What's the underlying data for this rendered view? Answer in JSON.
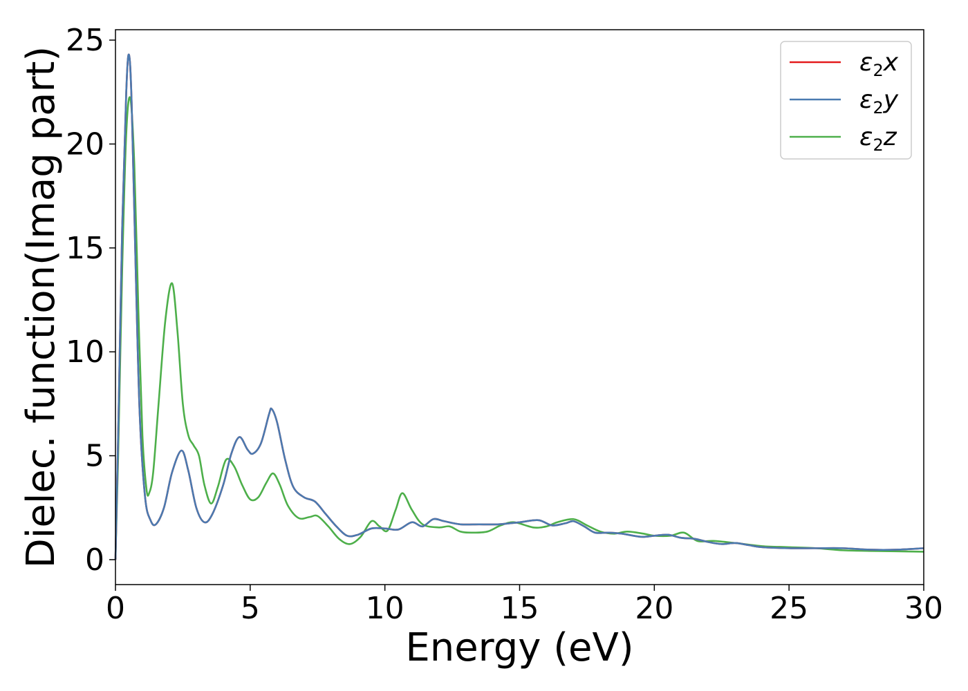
{
  "chart_data": {
    "type": "line",
    "xlabel": "Energy (eV)",
    "ylabel": "Dielec. function(Imag part)",
    "xlim": [
      0,
      30
    ],
    "ylim": [
      -1.2,
      25.5
    ],
    "x_ticks": [
      0,
      5,
      10,
      15,
      20,
      25,
      30
    ],
    "x_tick_labels": [
      "0",
      "5",
      "10",
      "15",
      "20",
      "25",
      "30"
    ],
    "y_ticks": [
      0,
      5,
      10,
      15,
      20,
      25
    ],
    "y_tick_labels": [
      "0",
      "5",
      "10",
      "15",
      "20",
      "25"
    ],
    "grid": false,
    "legend_position": "top-right",
    "series": [
      {
        "name": "ε2x",
        "legend_symbol": "ε",
        "legend_sub": "2",
        "legend_suffix": "x",
        "color": "#e41a1c",
        "points": [
          [
            0,
            0
          ],
          [
            0.1,
            6
          ],
          [
            0.25,
            16
          ],
          [
            0.4,
            22.5
          ],
          [
            0.5,
            24.3
          ],
          [
            0.6,
            22
          ],
          [
            0.75,
            14
          ],
          [
            0.9,
            7
          ],
          [
            1.1,
            3
          ],
          [
            1.3,
            1.9
          ],
          [
            1.5,
            1.7
          ],
          [
            1.8,
            2.5
          ],
          [
            2.1,
            4.2
          ],
          [
            2.45,
            5.25
          ],
          [
            2.7,
            4.3
          ],
          [
            3.0,
            2.5
          ],
          [
            3.3,
            1.8
          ],
          [
            3.6,
            2.2
          ],
          [
            4.0,
            3.6
          ],
          [
            4.3,
            5.1
          ],
          [
            4.6,
            5.9
          ],
          [
            4.9,
            5.3
          ],
          [
            5.1,
            5.1
          ],
          [
            5.4,
            5.6
          ],
          [
            5.7,
            7.0
          ],
          [
            5.8,
            7.25
          ],
          [
            6.0,
            6.6
          ],
          [
            6.3,
            4.8
          ],
          [
            6.6,
            3.5
          ],
          [
            7.0,
            3.0
          ],
          [
            7.4,
            2.8
          ],
          [
            7.8,
            2.2
          ],
          [
            8.2,
            1.6
          ],
          [
            8.6,
            1.15
          ],
          [
            9.0,
            1.2
          ],
          [
            9.5,
            1.5
          ],
          [
            10.0,
            1.5
          ],
          [
            10.5,
            1.45
          ],
          [
            11.0,
            1.8
          ],
          [
            11.4,
            1.6
          ],
          [
            11.8,
            1.95
          ],
          [
            12.2,
            1.85
          ],
          [
            12.8,
            1.7
          ],
          [
            13.5,
            1.7
          ],
          [
            14.2,
            1.7
          ],
          [
            15.0,
            1.8
          ],
          [
            15.7,
            1.9
          ],
          [
            16.2,
            1.65
          ],
          [
            16.7,
            1.75
          ],
          [
            17.0,
            1.85
          ],
          [
            17.4,
            1.6
          ],
          [
            17.8,
            1.3
          ],
          [
            18.3,
            1.3
          ],
          [
            18.8,
            1.25
          ],
          [
            19.5,
            1.1
          ],
          [
            20.0,
            1.15
          ],
          [
            20.5,
            1.2
          ],
          [
            21.0,
            1.05
          ],
          [
            21.5,
            1.0
          ],
          [
            22.0,
            0.85
          ],
          [
            22.5,
            0.75
          ],
          [
            23.0,
            0.8
          ],
          [
            23.5,
            0.7
          ],
          [
            24.0,
            0.6
          ],
          [
            25.0,
            0.55
          ],
          [
            26.0,
            0.55
          ],
          [
            27.0,
            0.55
          ],
          [
            28.0,
            0.48
          ],
          [
            29.0,
            0.48
          ],
          [
            30.0,
            0.55
          ]
        ]
      },
      {
        "name": "ε2y",
        "legend_symbol": "ε",
        "legend_sub": "2",
        "legend_suffix": "y",
        "color": "#4a7ab0",
        "points": [
          [
            0,
            0
          ],
          [
            0.1,
            6
          ],
          [
            0.25,
            16
          ],
          [
            0.4,
            22.5
          ],
          [
            0.5,
            24.3
          ],
          [
            0.6,
            22
          ],
          [
            0.75,
            14
          ],
          [
            0.9,
            7
          ],
          [
            1.1,
            3
          ],
          [
            1.3,
            1.9
          ],
          [
            1.5,
            1.7
          ],
          [
            1.8,
            2.5
          ],
          [
            2.1,
            4.2
          ],
          [
            2.45,
            5.25
          ],
          [
            2.7,
            4.3
          ],
          [
            3.0,
            2.5
          ],
          [
            3.3,
            1.8
          ],
          [
            3.6,
            2.2
          ],
          [
            4.0,
            3.6
          ],
          [
            4.3,
            5.1
          ],
          [
            4.6,
            5.9
          ],
          [
            4.9,
            5.3
          ],
          [
            5.1,
            5.1
          ],
          [
            5.4,
            5.6
          ],
          [
            5.7,
            7.0
          ],
          [
            5.8,
            7.25
          ],
          [
            6.0,
            6.6
          ],
          [
            6.3,
            4.8
          ],
          [
            6.6,
            3.5
          ],
          [
            7.0,
            3.0
          ],
          [
            7.4,
            2.8
          ],
          [
            7.8,
            2.2
          ],
          [
            8.2,
            1.6
          ],
          [
            8.6,
            1.15
          ],
          [
            9.0,
            1.2
          ],
          [
            9.5,
            1.5
          ],
          [
            10.0,
            1.5
          ],
          [
            10.5,
            1.45
          ],
          [
            11.0,
            1.8
          ],
          [
            11.4,
            1.6
          ],
          [
            11.8,
            1.95
          ],
          [
            12.2,
            1.85
          ],
          [
            12.8,
            1.7
          ],
          [
            13.5,
            1.7
          ],
          [
            14.2,
            1.7
          ],
          [
            15.0,
            1.8
          ],
          [
            15.7,
            1.9
          ],
          [
            16.2,
            1.65
          ],
          [
            16.7,
            1.75
          ],
          [
            17.0,
            1.85
          ],
          [
            17.4,
            1.6
          ],
          [
            17.8,
            1.3
          ],
          [
            18.3,
            1.3
          ],
          [
            18.8,
            1.25
          ],
          [
            19.5,
            1.1
          ],
          [
            20.0,
            1.15
          ],
          [
            20.5,
            1.2
          ],
          [
            21.0,
            1.05
          ],
          [
            21.5,
            1.0
          ],
          [
            22.0,
            0.85
          ],
          [
            22.5,
            0.75
          ],
          [
            23.0,
            0.8
          ],
          [
            23.5,
            0.7
          ],
          [
            24.0,
            0.6
          ],
          [
            25.0,
            0.55
          ],
          [
            26.0,
            0.55
          ],
          [
            27.0,
            0.55
          ],
          [
            28.0,
            0.48
          ],
          [
            29.0,
            0.48
          ],
          [
            30.0,
            0.55
          ]
        ]
      },
      {
        "name": "ε2z",
        "legend_symbol": "ε",
        "legend_sub": "2",
        "legend_suffix": "z",
        "color": "#4daf4a",
        "points": [
          [
            0,
            0
          ],
          [
            0.1,
            5
          ],
          [
            0.25,
            14
          ],
          [
            0.4,
            20.5
          ],
          [
            0.55,
            22.2
          ],
          [
            0.7,
            19
          ],
          [
            0.85,
            12
          ],
          [
            1.0,
            6
          ],
          [
            1.15,
            3.4
          ],
          [
            1.25,
            3.2
          ],
          [
            1.4,
            4.2
          ],
          [
            1.6,
            7.5
          ],
          [
            1.85,
            11.5
          ],
          [
            2.1,
            13.3
          ],
          [
            2.3,
            11
          ],
          [
            2.5,
            7.5
          ],
          [
            2.7,
            6
          ],
          [
            2.9,
            5.5
          ],
          [
            3.1,
            5.0
          ],
          [
            3.3,
            3.6
          ],
          [
            3.55,
            2.7
          ],
          [
            3.8,
            3.5
          ],
          [
            4.1,
            4.8
          ],
          [
            4.4,
            4.5
          ],
          [
            4.7,
            3.6
          ],
          [
            5.0,
            2.9
          ],
          [
            5.3,
            3.0
          ],
          [
            5.6,
            3.7
          ],
          [
            5.85,
            4.15
          ],
          [
            6.1,
            3.6
          ],
          [
            6.4,
            2.6
          ],
          [
            6.8,
            2.0
          ],
          [
            7.2,
            2.05
          ],
          [
            7.5,
            2.1
          ],
          [
            7.9,
            1.6
          ],
          [
            8.3,
            1.0
          ],
          [
            8.7,
            0.75
          ],
          [
            9.1,
            1.1
          ],
          [
            9.5,
            1.85
          ],
          [
            9.8,
            1.6
          ],
          [
            10.1,
            1.4
          ],
          [
            10.4,
            2.4
          ],
          [
            10.65,
            3.2
          ],
          [
            11.0,
            2.4
          ],
          [
            11.4,
            1.7
          ],
          [
            12.0,
            1.55
          ],
          [
            12.4,
            1.6
          ],
          [
            12.8,
            1.35
          ],
          [
            13.2,
            1.3
          ],
          [
            13.8,
            1.35
          ],
          [
            14.3,
            1.65
          ],
          [
            14.8,
            1.8
          ],
          [
            15.5,
            1.55
          ],
          [
            16.0,
            1.6
          ],
          [
            16.4,
            1.8
          ],
          [
            17.0,
            1.95
          ],
          [
            17.5,
            1.65
          ],
          [
            18.0,
            1.35
          ],
          [
            18.5,
            1.25
          ],
          [
            19.0,
            1.35
          ],
          [
            19.6,
            1.25
          ],
          [
            20.0,
            1.15
          ],
          [
            20.6,
            1.15
          ],
          [
            21.1,
            1.3
          ],
          [
            21.6,
            0.9
          ],
          [
            22.2,
            0.9
          ],
          [
            23.0,
            0.8
          ],
          [
            24.0,
            0.65
          ],
          [
            25.0,
            0.6
          ],
          [
            26.0,
            0.55
          ],
          [
            27.0,
            0.45
          ],
          [
            28.0,
            0.42
          ],
          [
            29.0,
            0.4
          ],
          [
            30.0,
            0.38
          ]
        ]
      }
    ]
  }
}
